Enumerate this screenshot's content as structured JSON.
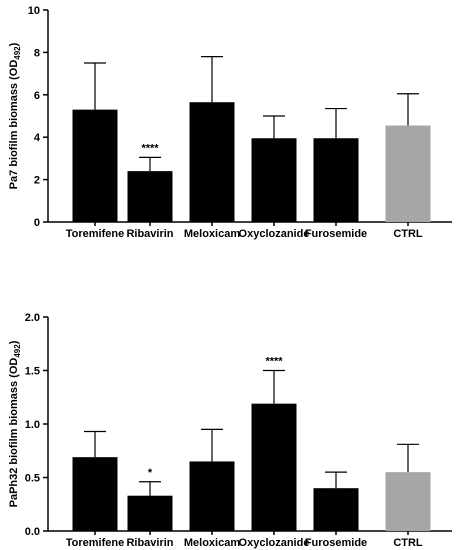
{
  "chart_data": [
    {
      "type": "bar",
      "ylabel": "Pa7 biofilm biomass (OD",
      "ylabel_sub": "492",
      "ylabel_end": ")",
      "categories": [
        "Toremifene",
        "Ribavirin",
        "Meloxicam",
        "Oxyclozanide",
        "Furosemide",
        "CTRL"
      ],
      "values": [
        5.3,
        2.4,
        5.65,
        3.95,
        3.95,
        4.55
      ],
      "error": [
        2.2,
        0.65,
        2.15,
        1.05,
        1.4,
        1.5
      ],
      "significance": [
        "",
        "****",
        "",
        "",
        "",
        ""
      ],
      "colors": [
        "#000000",
        "#000000",
        "#000000",
        "#000000",
        "#000000",
        "#a6a6a6"
      ],
      "ylim": [
        0,
        10
      ],
      "yticks": [
        "0",
        "2",
        "4",
        "6",
        "8",
        "10"
      ],
      "grid": false
    },
    {
      "type": "bar",
      "ylabel": "PaPh32 biofilm biomass (OD",
      "ylabel_sub": "492",
      "ylabel_end": ")",
      "categories": [
        "Toremifene",
        "Ribavirin",
        "Meloxicam",
        "Oxyclozanide",
        "Furosemide",
        "CTRL"
      ],
      "values": [
        0.69,
        0.33,
        0.65,
        1.19,
        0.4,
        0.55
      ],
      "error": [
        0.24,
        0.13,
        0.3,
        0.31,
        0.15,
        0.26
      ],
      "significance": [
        "",
        "*",
        "",
        "****",
        "",
        ""
      ],
      "colors": [
        "#000000",
        "#000000",
        "#000000",
        "#000000",
        "#000000",
        "#a6a6a6"
      ],
      "ylim": [
        0,
        2
      ],
      "yticks": [
        "0.0",
        "0.5",
        "1.0",
        "1.5",
        "2.0"
      ],
      "grid": false
    }
  ]
}
